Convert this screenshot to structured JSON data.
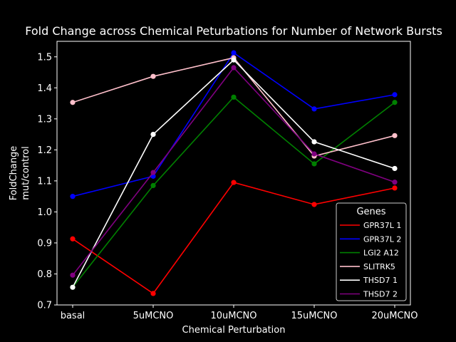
{
  "chart_data": {
    "type": "line",
    "title": "Fold Change across Chemical Peturbations for Number of Network Bursts",
    "xlabel": "Chemical Perturbation",
    "ylabel_lines": [
      "FoldChange",
      "mut/control"
    ],
    "categories": [
      "basal",
      "5uMCNO",
      "10uMCNO",
      "15uMCNO",
      "20uMCNO"
    ],
    "ylim": [
      0.7,
      1.55
    ],
    "yticks": [
      0.7,
      0.8,
      0.9,
      1.0,
      1.1,
      1.2,
      1.3,
      1.4,
      1.5
    ],
    "grid": false,
    "legend": {
      "title": "Genes",
      "placement": "lower-right"
    },
    "series": [
      {
        "name": "GPR37L 1",
        "color": "#ff0000",
        "values": [
          0.913,
          0.737,
          1.095,
          1.024,
          1.077
        ]
      },
      {
        "name": "GPR37L 2",
        "color": "#0000ff",
        "values": [
          1.05,
          1.115,
          1.513,
          1.332,
          1.378
        ]
      },
      {
        "name": "LGI2 A12",
        "color": "#008000",
        "values": [
          0.757,
          1.085,
          1.37,
          1.155,
          1.353
        ]
      },
      {
        "name": "SLITRK5",
        "color": "#ffc0cb",
        "values": [
          1.353,
          1.437,
          1.497,
          1.18,
          1.246
        ]
      },
      {
        "name": "THSD7 1",
        "color": "#ffffff",
        "values": [
          0.757,
          1.25,
          1.49,
          1.226,
          1.14
        ]
      },
      {
        "name": "THSD7 2",
        "color": "#800080",
        "values": [
          0.796,
          1.127,
          1.465,
          1.187,
          1.096
        ]
      }
    ]
  }
}
